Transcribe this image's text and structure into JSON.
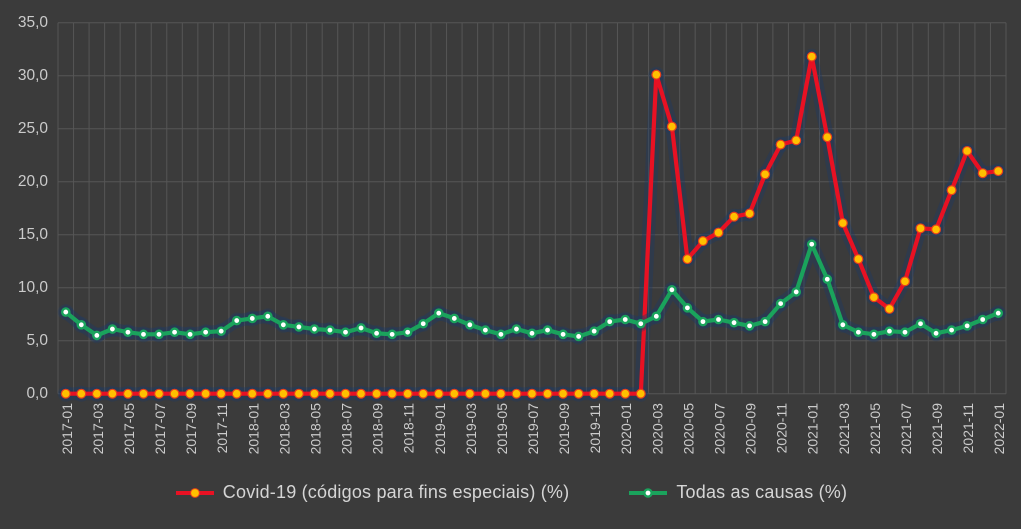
{
  "style": {
    "background": "#3b3b3b",
    "grid_color": "#565656",
    "axis_text_color": "#cbcbcb",
    "legend_text_color": "#d5d5d5",
    "glow_color": "#1e3a66"
  },
  "chart_data": {
    "type": "line",
    "title": "",
    "xlabel": "",
    "ylabel": "",
    "ylim": [
      0,
      35
    ],
    "y_step": 5,
    "grid": true,
    "legend_position": "bottom",
    "y_tick_labels": [
      "0,0",
      "5,0",
      "10,0",
      "15,0",
      "20,0",
      "25,0",
      "30,0",
      "35,0"
    ],
    "x": [
      "2017-01",
      "2017-02",
      "2017-03",
      "2017-04",
      "2017-05",
      "2017-06",
      "2017-07",
      "2017-08",
      "2017-09",
      "2017-10",
      "2017-11",
      "2017-12",
      "2018-01",
      "2018-02",
      "2018-03",
      "2018-04",
      "2018-05",
      "2018-06",
      "2018-07",
      "2018-08",
      "2018-09",
      "2018-10",
      "2018-11",
      "2018-12",
      "2019-01",
      "2019-02",
      "2019-03",
      "2019-04",
      "2019-05",
      "2019-06",
      "2019-07",
      "2019-08",
      "2019-09",
      "2019-10",
      "2019-11",
      "2019-12",
      "2020-01",
      "2020-02",
      "2020-03",
      "2020-04",
      "2020-05",
      "2020-06",
      "2020-07",
      "2020-08",
      "2020-09",
      "2020-10",
      "2020-11",
      "2020-12",
      "2021-01",
      "2021-02",
      "2021-03",
      "2021-04",
      "2021-05",
      "2021-06",
      "2021-07",
      "2021-08",
      "2021-09",
      "2021-10",
      "2021-11",
      "2021-12",
      "2022-01"
    ],
    "x_tick_labels": [
      "2017-01",
      "2017-03",
      "2017-05",
      "2017-07",
      "2017-09",
      "2017-11",
      "2018-01",
      "2018-03",
      "2018-05",
      "2018-07",
      "2018-09",
      "2018-11",
      "2019-01",
      "2019-03",
      "2019-05",
      "2019-07",
      "2019-09",
      "2019-11",
      "2020-01",
      "2020-03",
      "2020-05",
      "2020-07",
      "2020-09",
      "2020-11",
      "2021-01",
      "2021-03",
      "2021-05",
      "2021-07",
      "2021-09",
      "2021-11",
      "2022-01"
    ],
    "series": [
      {
        "name": "Covid-19 (códigos para fins especiais) (%)",
        "color": "#e81123",
        "marker_fill": "#ffc000",
        "marker_stroke": "#e8411b",
        "values": [
          0.0,
          0.0,
          0.0,
          0.0,
          0.0,
          0.0,
          0.0,
          0.0,
          0.0,
          0.0,
          0.0,
          0.0,
          0.0,
          0.0,
          0.0,
          0.0,
          0.0,
          0.0,
          0.0,
          0.0,
          0.0,
          0.0,
          0.0,
          0.0,
          0.0,
          0.0,
          0.0,
          0.0,
          0.0,
          0.0,
          0.0,
          0.0,
          0.0,
          0.0,
          0.0,
          0.0,
          0.0,
          0.0,
          30.1,
          25.2,
          12.7,
          14.4,
          15.2,
          16.7,
          17.0,
          20.7,
          23.5,
          23.9,
          31.8,
          24.2,
          16.1,
          12.7,
          9.1,
          8.0,
          10.6,
          15.6,
          15.5,
          19.2,
          22.9,
          20.8,
          21.0
        ]
      },
      {
        "name": "Todas as causas (%)",
        "color": "#1aa35c",
        "marker_fill": "#ffffff",
        "marker_stroke": "#1aa35c",
        "values": [
          7.7,
          6.5,
          5.5,
          6.1,
          5.8,
          5.6,
          5.6,
          5.8,
          5.6,
          5.8,
          5.9,
          6.9,
          7.1,
          7.3,
          6.5,
          6.3,
          6.1,
          6.0,
          5.8,
          6.2,
          5.7,
          5.6,
          5.8,
          6.6,
          7.6,
          7.1,
          6.5,
          6.0,
          5.6,
          6.1,
          5.7,
          6.0,
          5.6,
          5.4,
          5.9,
          6.8,
          7.0,
          6.6,
          7.3,
          9.8,
          8.1,
          6.8,
          7.0,
          6.7,
          6.4,
          6.8,
          8.5,
          9.6,
          14.1,
          10.8,
          6.5,
          5.8,
          5.6,
          5.9,
          5.8,
          6.6,
          5.7,
          6.0,
          6.4,
          7.0,
          7.6
        ]
      }
    ]
  }
}
